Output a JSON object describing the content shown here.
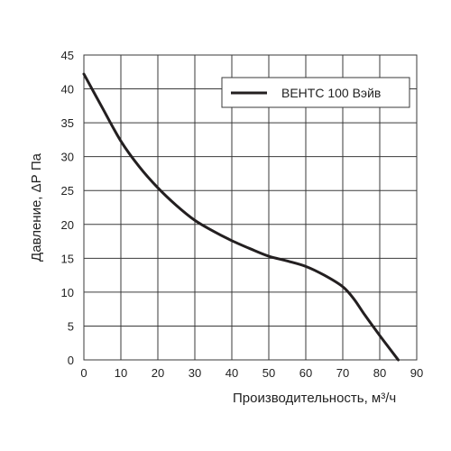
{
  "chart_data": {
    "type": "line",
    "xlabel": "Производительность, м³/ч",
    "ylabel": "Давление, ΔР Па",
    "xlim": [
      0,
      90
    ],
    "ylim": [
      0,
      45
    ],
    "x_ticks": [
      0,
      10,
      20,
      30,
      40,
      50,
      60,
      70,
      80,
      90
    ],
    "y_ticks": [
      0,
      5,
      10,
      15,
      20,
      25,
      30,
      35,
      40,
      45
    ],
    "grid": true,
    "legend": "top-right",
    "series": [
      {
        "name": "ВЕНТС 100 Вэйв",
        "color": "#231f20",
        "x": [
          0,
          5,
          10,
          15,
          20,
          25,
          30,
          35,
          40,
          45,
          50,
          55,
          60,
          65,
          70,
          73,
          76,
          80,
          85
        ],
        "y": [
          42.2,
          37.2,
          32.3,
          28.5,
          25.4,
          22.8,
          20.6,
          19.0,
          17.6,
          16.4,
          15.3,
          14.6,
          13.8,
          12.5,
          10.8,
          9.0,
          6.6,
          3.6,
          0
        ]
      }
    ]
  }
}
